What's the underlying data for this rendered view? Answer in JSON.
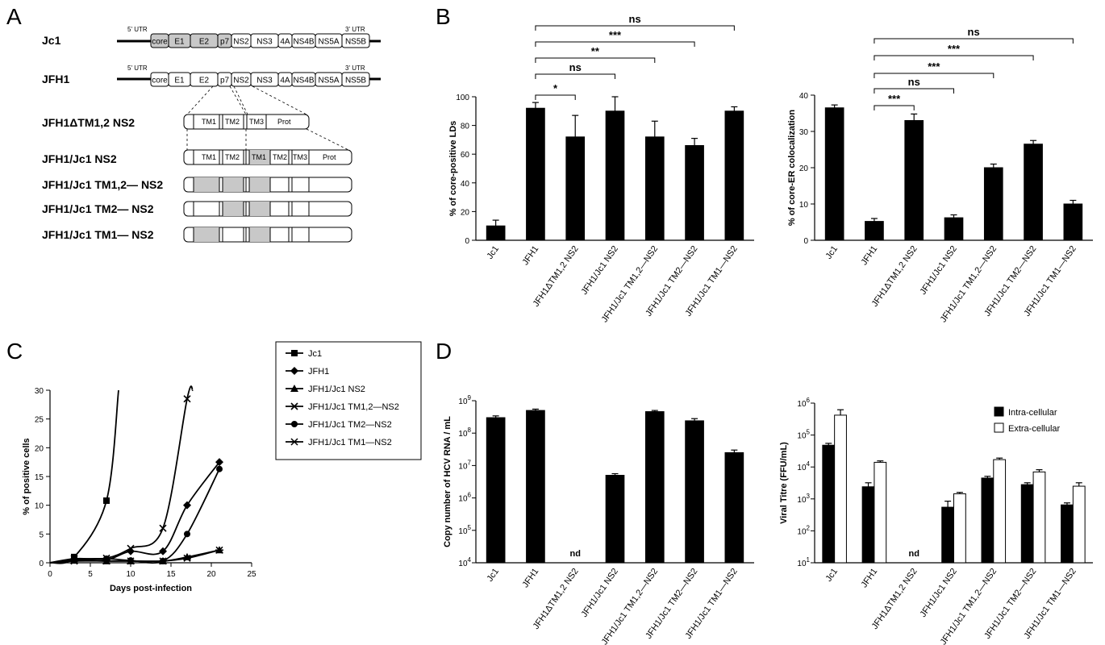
{
  "panels": {
    "A": "A",
    "B": "B",
    "C": "C",
    "D": "D"
  },
  "panelA": {
    "jc1": {
      "label": "Jc1",
      "utr5": "5' UTR",
      "utr3": "3' UTR",
      "segments": [
        "core",
        "E1",
        "E2",
        "p7",
        "NS2",
        "NS3",
        "4A",
        "NS4B",
        "NS5A",
        "NS5B"
      ]
    },
    "jfh1": {
      "label": "JFH1",
      "utr5": "5' UTR",
      "utr3": "3' UTR",
      "segments": [
        "core",
        "E1",
        "E2",
        "p7",
        "NS2",
        "NS3",
        "4A",
        "NS4B",
        "NS5A",
        "NS5B"
      ]
    },
    "delta": {
      "label": "JFH1ΔTM1,2 NS2",
      "segments": [
        "TM1",
        "TM2",
        "TM3",
        "Prot"
      ]
    },
    "chimera": {
      "label": "JFH1/Jc1 NS2",
      "segments": [
        "TM1",
        "TM2",
        "TM1",
        "TM2",
        "TM3",
        "Prot"
      ]
    },
    "tm12": {
      "label": "JFH1/Jc1 TM1,2— NS2"
    },
    "tm2": {
      "label": "JFH1/Jc1 TM2— NS2"
    },
    "tm1": {
      "label": "JFH1/Jc1 TM1— NS2"
    }
  },
  "categories": [
    "Jc1",
    "JFH1",
    "JFH1ΔTM1,2 NS2",
    "JFH1/Jc1 NS2",
    "JFH1/Jc1 TM1,2—NS2",
    "JFH1/Jc1 TM2—NS2",
    "JFH1/Jc1 TM1—NS2"
  ],
  "chart_data": [
    {
      "id": "B-left",
      "type": "bar",
      "ylabel": "% of core-positive LDs",
      "ylim": [
        0,
        100
      ],
      "yticks": [
        "0",
        "20",
        "40",
        "60",
        "80",
        "100"
      ],
      "values": [
        10,
        92,
        72,
        90,
        72,
        66,
        90
      ],
      "errors": [
        4,
        4,
        15,
        10,
        11,
        5,
        3
      ],
      "significance": [
        {
          "label": "*",
          "from": 1,
          "to": 2
        },
        {
          "label": "ns",
          "from": 1,
          "to": 3
        },
        {
          "label": "**",
          "from": 1,
          "to": 4
        },
        {
          "label": "***",
          "from": 1,
          "to": 5
        },
        {
          "label": "ns",
          "from": 1,
          "to": 6
        }
      ]
    },
    {
      "id": "B-right",
      "type": "bar",
      "ylabel": "% of core-ER colocalization",
      "ylim": [
        0,
        40
      ],
      "yticks": [
        "0",
        "10",
        "20",
        "30",
        "40"
      ],
      "values": [
        36.5,
        5.2,
        33,
        6.2,
        20,
        26.5,
        10
      ],
      "errors": [
        0.8,
        0.8,
        1.8,
        0.8,
        1,
        1,
        1
      ],
      "significance": [
        {
          "label": "***",
          "from": 1,
          "to": 2
        },
        {
          "label": "ns",
          "from": 1,
          "to": 3
        },
        {
          "label": "***",
          "from": 1,
          "to": 4
        },
        {
          "label": "***",
          "from": 1,
          "to": 5
        },
        {
          "label": "ns",
          "from": 1,
          "to": 6
        }
      ]
    },
    {
      "id": "C",
      "type": "line",
      "xlabel": "Days post-infection",
      "ylabel": "% of positive cells",
      "xlim": [
        0,
        25
      ],
      "ylim": [
        0,
        30
      ],
      "xticks": [
        "0",
        "5",
        "10",
        "15",
        "20",
        "25"
      ],
      "yticks": [
        "0",
        "5",
        "10",
        "15",
        "20",
        "25",
        "30"
      ],
      "series": [
        {
          "name": "Jc1",
          "marker": "square",
          "x": [
            0,
            3,
            7
          ],
          "y": [
            0,
            1,
            10.8
          ],
          "extend": [
            8.5,
            30
          ]
        },
        {
          "name": "JFH1",
          "marker": "diamond",
          "x": [
            0,
            3,
            7,
            10,
            14,
            17,
            21
          ],
          "y": [
            0,
            0.5,
            0.5,
            2,
            2,
            10,
            17.5
          ]
        },
        {
          "name": "JFH1/Jc1 NS2",
          "marker": "triangle",
          "x": [
            0,
            3,
            7,
            10,
            14,
            17,
            21
          ],
          "y": [
            0,
            0.4,
            0.3,
            0.3,
            0.3,
            1,
            2.2
          ]
        },
        {
          "name": "JFH1/Jc1 TM1,2—NS2",
          "marker": "x",
          "x": [
            0,
            3,
            7,
            10,
            14,
            17
          ],
          "y": [
            0,
            0.7,
            0.8,
            2.5,
            6,
            28.5
          ],
          "extend": [
            17.7,
            30
          ]
        },
        {
          "name": "JFH1/Jc1 TM2—NS2",
          "marker": "circle",
          "x": [
            0,
            3,
            7,
            10,
            14,
            17,
            21
          ],
          "y": [
            0,
            0.6,
            0.7,
            0.4,
            0.3,
            5,
            16.3
          ]
        },
        {
          "name": "JFH1/Jc1 TM1—NS2",
          "marker": "star",
          "x": [
            0,
            3,
            7,
            10,
            14,
            17,
            21
          ],
          "y": [
            0,
            0.3,
            0.3,
            0.3,
            0.3,
            0.8,
            2.2
          ]
        }
      ]
    },
    {
      "id": "D-left",
      "type": "bar",
      "scale": "log",
      "ylabel": "Copy number of HCV RNA / mL",
      "ylim": [
        "10^4",
        "10^9"
      ],
      "yticks": [
        {
          "base": "10",
          "exp": "4"
        },
        {
          "base": "10",
          "exp": "5"
        },
        {
          "base": "10",
          "exp": "6"
        },
        {
          "base": "10",
          "exp": "7"
        },
        {
          "base": "10",
          "exp": "8"
        },
        {
          "base": "10",
          "exp": "9"
        }
      ],
      "values": [
        300000000.0,
        500000000.0,
        null,
        5000000.0,
        460000000.0,
        240000000.0,
        25000000.0
      ],
      "errors": [
        340000000.0,
        550000000.0,
        null,
        5600000.0,
        500000000.0,
        280000000.0,
        30000000.0
      ],
      "nd_label": "nd"
    },
    {
      "id": "D-right",
      "type": "bar",
      "scale": "log",
      "ylabel": "Viral Titre (FFU/mL)",
      "ylim": [
        "10^1",
        "10^6"
      ],
      "yticks": [
        {
          "base": "10",
          "exp": "1"
        },
        {
          "base": "10",
          "exp": "2"
        },
        {
          "base": "10",
          "exp": "3"
        },
        {
          "base": "10",
          "exp": "4"
        },
        {
          "base": "10",
          "exp": "5"
        },
        {
          "base": "10",
          "exp": "6"
        }
      ],
      "series": [
        {
          "name": "Intra-cellular",
          "color": "#000000",
          "values": [
            48000,
            2400,
            null,
            550,
            4500,
            2800,
            650
          ],
          "errors": [
            55000,
            3200,
            null,
            850,
            5100,
            3200,
            750
          ]
        },
        {
          "name": "Extra-cellular",
          "color": "#ffffff",
          "values": [
            420000,
            14000,
            null,
            1450,
            17000,
            7000,
            2500
          ],
          "errors": [
            620000,
            15500,
            null,
            1600,
            19000,
            8200,
            3200
          ]
        }
      ],
      "nd_label": "nd"
    }
  ]
}
